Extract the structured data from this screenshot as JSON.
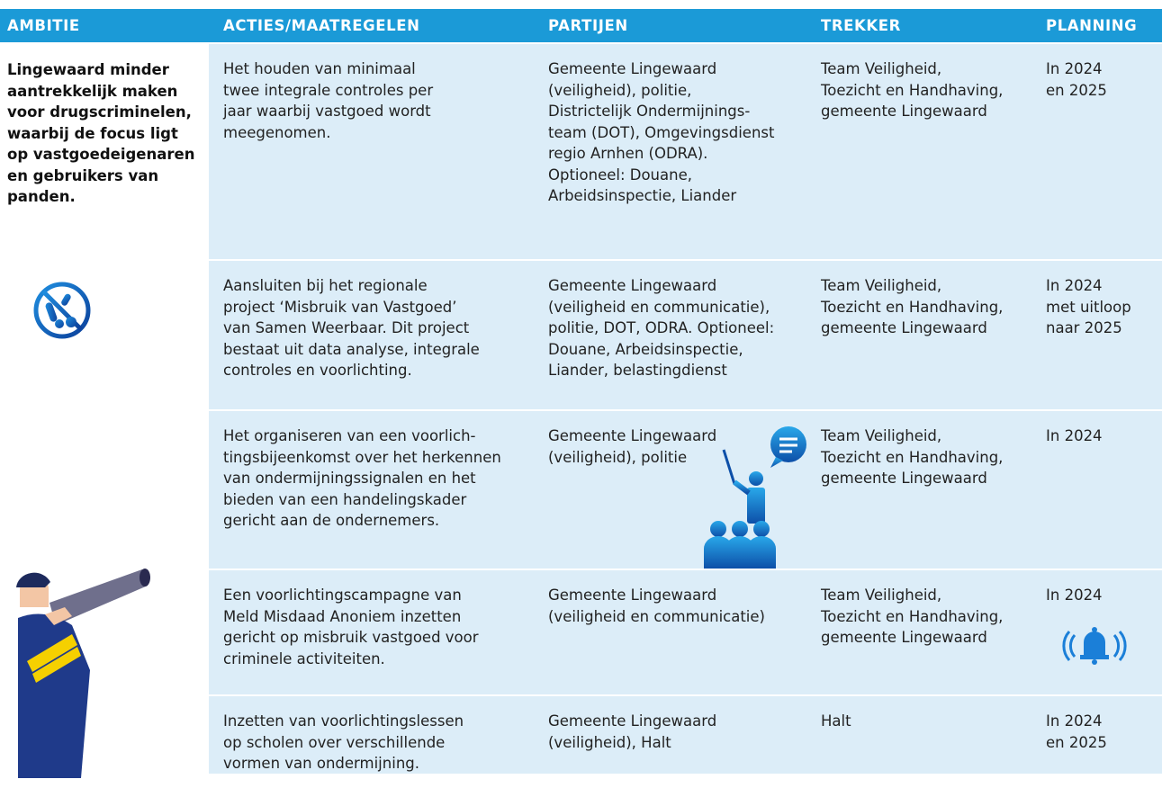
{
  "table": {
    "headers": [
      "AMBITIE",
      "ACTIES/MAATREGELEN",
      "PARTIJEN",
      "TREKKER",
      "PLANNING"
    ],
    "ambitie": [
      "Lingewaard minder",
      "aantrekkelijk maken",
      "voor drugscriminelen,",
      "waarbij de focus ligt",
      "op vastgoedeigenaren",
      "en gebruikers van",
      "panden."
    ],
    "rows": [
      [
        [
          "Het houden van minimaal",
          "twee integrale controles per",
          "jaar waarbij vastgoed wordt",
          "meegenomen."
        ],
        [
          "Gemeente Lingewaard",
          "(veiligheid), politie,",
          "Districtelijk Ondermijnings-",
          "team (DOT), Omgevingsdienst",
          "regio Arnhen (ODRA).",
          "Optioneel: Douane,",
          "Arbeidsinspectie, Liander"
        ],
        [
          "Team Veiligheid,",
          "Toezicht en Handhaving,",
          "gemeente Lingewaard"
        ],
        [
          "In 2024",
          "en 2025"
        ]
      ],
      [
        [
          "Aansluiten bij het regionale",
          "project ‘Misbruik van Vastgoed’",
          "van Samen Weerbaar. Dit project",
          "bestaat uit data analyse, integrale",
          "controles en voorlichting."
        ],
        [
          "Gemeente Lingewaard",
          "(veiligheid en communicatie),",
          "politie, DOT, ODRA. Optioneel:",
          "Douane, Arbeidsinspectie,",
          "Liander, belastingdienst"
        ],
        [
          "Team Veiligheid,",
          "Toezicht en Handhaving,",
          "gemeente Lingewaard"
        ],
        [
          "In 2024",
          "met uitloop",
          "naar 2025"
        ]
      ],
      [
        [
          "Het organiseren van een voorlich-",
          "tingsbijeenkomst over het herkennen",
          "van ondermijningssignalen en het",
          "bieden van een handelingskader",
          "gericht aan de ondernemers."
        ],
        [
          "Gemeente Lingewaard",
          "(veiligheid), politie"
        ],
        [
          "Team Veiligheid,",
          "Toezicht en Handhaving,",
          "gemeente Lingewaard"
        ],
        [
          "In 2024"
        ]
      ],
      [
        [
          "Een voorlichtingscampagne van",
          "Meld Misdaad Anoniem inzetten",
          "gericht op misbruik vastgoed voor",
          "criminele activiteiten."
        ],
        [
          "Gemeente Lingewaard",
          "(veiligheid en communicatie)"
        ],
        [
          "Team Veiligheid,",
          "Toezicht en Handhaving,",
          "gemeente Lingewaard"
        ],
        [
          "In 2024"
        ]
      ],
      [
        [
          "Inzetten van voorlichtingslessen",
          "op scholen over verschillende",
          "vormen van ondermijning."
        ],
        [
          "Gemeente Lingewaard",
          "(veiligheid), Halt"
        ],
        [
          "Halt"
        ],
        [
          "In 2024",
          "en 2025"
        ]
      ]
    ]
  }
}
